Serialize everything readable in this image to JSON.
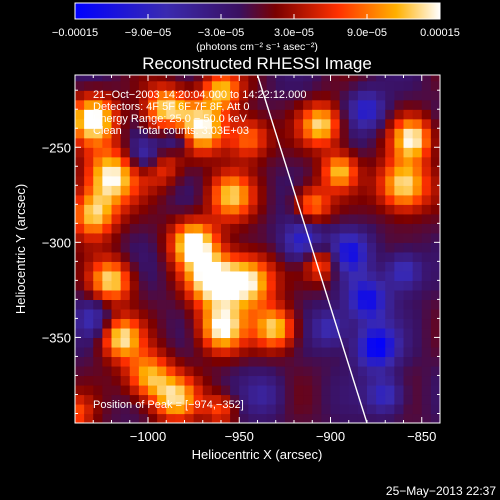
{
  "chart_data": {
    "type": "heatmap",
    "title": "Reconstructed RHESSI Image",
    "xlabel": "Heliocentric X (arcsec)",
    "ylabel": "Heliocentric Y (arcsec)",
    "xlim": [
      -1040,
      -840
    ],
    "ylim": [
      -395,
      -212
    ],
    "x_ticks": [
      {
        "value": -1000,
        "label": "−1000"
      },
      {
        "value": -950,
        "label": "−950"
      },
      {
        "value": -900,
        "label": "−900"
      },
      {
        "value": -850,
        "label": "−850"
      }
    ],
    "y_ticks": [
      {
        "value": -250,
        "label": "−250"
      },
      {
        "value": -300,
        "label": "−300"
      },
      {
        "value": -350,
        "label": "−350"
      }
    ],
    "colorbar": {
      "range": [
        -0.00015,
        0.00015
      ],
      "ticks": [
        {
          "value": -0.00015,
          "label": "−0.00015"
        },
        {
          "value": -9e-05,
          "label": "−9.0e−05"
        },
        {
          "value": -3e-05,
          "label": "−3.0e−05"
        },
        {
          "value": 3e-05,
          "label": "3.0e−05"
        },
        {
          "value": 9e-05,
          "label": "9.0e−05"
        },
        {
          "value": 0.00015,
          "label": "0.00015"
        }
      ],
      "unit_label": "(photons cm⁻² s⁻¹ asec⁻²)"
    },
    "annotations": [
      "21−Oct−2003 14:20:04.000 to 14:22:12.000",
      "Detectors: 4F 5F 6F 7F 8F, Att 0",
      "Energy Range: 25.0 − 50.0 keV",
      "Clean     Total counts: 3.03E+03"
    ],
    "peak_label": "Position of Peak = [−974,−352]",
    "peak": {
      "x": -974,
      "y": -352
    },
    "limb_line": {
      "x": [
        -940,
        -880
      ],
      "y": [
        -212,
        -395
      ]
    },
    "colors": {
      "background": "#000000",
      "low": "#0000ff",
      "zero": "#2a0a4a",
      "high": "#ffffff"
    },
    "blobs": [
      {
        "x": -1030,
        "y": -235,
        "amp": 1.0,
        "s": 9
      },
      {
        "x": -1020,
        "y": -265,
        "amp": 1.0,
        "s": 10
      },
      {
        "x": -1030,
        "y": -285,
        "amp": 0.9,
        "s": 9
      },
      {
        "x": -990,
        "y": -230,
        "amp": 0.9,
        "s": 9
      },
      {
        "x": -995,
        "y": -258,
        "amp": 0.8,
        "s": 8
      },
      {
        "x": -970,
        "y": -240,
        "amp": 0.9,
        "s": 9
      },
      {
        "x": -960,
        "y": -220,
        "amp": 0.8,
        "s": 8
      },
      {
        "x": -945,
        "y": -245,
        "amp": 0.7,
        "s": 8
      },
      {
        "x": -955,
        "y": -275,
        "amp": 0.8,
        "s": 9
      },
      {
        "x": -975,
        "y": -300,
        "amp": 1.0,
        "s": 9
      },
      {
        "x": -965,
        "y": -320,
        "amp": 1.0,
        "s": 10
      },
      {
        "x": -945,
        "y": -320,
        "amp": 1.0,
        "s": 10
      },
      {
        "x": -960,
        "y": -345,
        "amp": 1.0,
        "s": 9
      },
      {
        "x": -930,
        "y": -345,
        "amp": 0.9,
        "s": 8
      },
      {
        "x": -1020,
        "y": -320,
        "amp": 0.9,
        "s": 8
      },
      {
        "x": -1015,
        "y": -350,
        "amp": 0.9,
        "s": 8
      },
      {
        "x": -1000,
        "y": -370,
        "amp": 0.8,
        "s": 9
      },
      {
        "x": -985,
        "y": -382,
        "amp": 0.8,
        "s": 9
      },
      {
        "x": -905,
        "y": -238,
        "amp": 0.9,
        "s": 8
      },
      {
        "x": -895,
        "y": -262,
        "amp": 0.8,
        "s": 7
      },
      {
        "x": -910,
        "y": -280,
        "amp": 0.7,
        "s": 7
      },
      {
        "x": -905,
        "y": -310,
        "amp": 0.7,
        "s": 7
      },
      {
        "x": -860,
        "y": -270,
        "amp": 1.0,
        "s": 10
      },
      {
        "x": -855,
        "y": -245,
        "amp": 0.9,
        "s": 8
      },
      {
        "x": -1000,
        "y": -255,
        "amp": -0.9,
        "s": 7
      },
      {
        "x": -985,
        "y": -245,
        "amp": -0.6,
        "s": 6
      },
      {
        "x": -880,
        "y": -230,
        "amp": -0.6,
        "s": 7
      },
      {
        "x": -915,
        "y": -300,
        "amp": -0.7,
        "s": 8
      },
      {
        "x": -890,
        "y": -305,
        "amp": -0.7,
        "s": 8
      },
      {
        "x": -880,
        "y": -330,
        "amp": -0.8,
        "s": 8
      },
      {
        "x": -860,
        "y": -315,
        "amp": -0.6,
        "s": 7
      },
      {
        "x": -875,
        "y": -355,
        "amp": -0.9,
        "s": 8
      },
      {
        "x": -900,
        "y": -345,
        "amp": -0.5,
        "s": 7
      },
      {
        "x": -870,
        "y": -380,
        "amp": -0.6,
        "s": 7
      },
      {
        "x": -1030,
        "y": -340,
        "amp": -0.4,
        "s": 7
      },
      {
        "x": -935,
        "y": -380,
        "amp": -0.3,
        "s": 8
      },
      {
        "x": -960,
        "y": -388,
        "amp": 0.5,
        "s": 6
      },
      {
        "x": -1040,
        "y": -390,
        "amp": 0.5,
        "s": 7
      }
    ]
  },
  "footer": {
    "timestamp": "25−May−2013 22:37"
  }
}
